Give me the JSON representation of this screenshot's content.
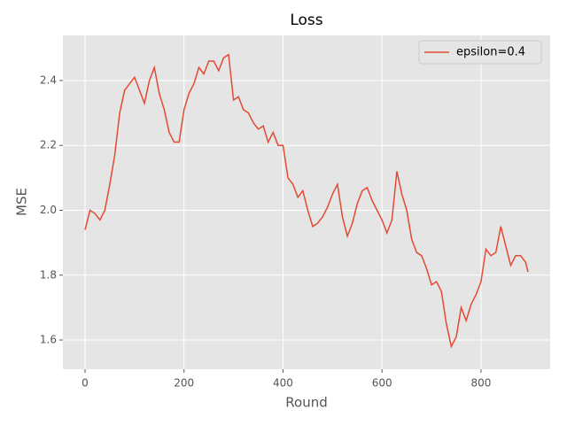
{
  "chart_data": {
    "type": "line",
    "title": "Loss",
    "x_label": "Round",
    "y_label": "MSE",
    "x": [
      0,
      10,
      20,
      30,
      40,
      50,
      60,
      70,
      80,
      90,
      100,
      110,
      120,
      130,
      140,
      150,
      160,
      170,
      180,
      190,
      200,
      210,
      220,
      230,
      240,
      250,
      260,
      270,
      280,
      290,
      300,
      310,
      320,
      330,
      340,
      350,
      360,
      370,
      380,
      390,
      400,
      410,
      420,
      430,
      440,
      450,
      460,
      470,
      480,
      490,
      500,
      510,
      520,
      530,
      540,
      550,
      560,
      570,
      580,
      590,
      600,
      610,
      620,
      630,
      640,
      650,
      660,
      670,
      680,
      690,
      700,
      710,
      720,
      730,
      740,
      750,
      760,
      770,
      780,
      790,
      800,
      810,
      820,
      830,
      840,
      850,
      860,
      870,
      880,
      890,
      895
    ],
    "series": [
      {
        "name": "epsilon=0.4",
        "color": "#E24A33",
        "values": [
          1.94,
          2.0,
          1.99,
          1.97,
          2.0,
          2.08,
          2.17,
          2.3,
          2.37,
          2.39,
          2.41,
          2.37,
          2.33,
          2.4,
          2.44,
          2.36,
          2.31,
          2.24,
          2.21,
          2.21,
          2.31,
          2.36,
          2.39,
          2.44,
          2.42,
          2.46,
          2.46,
          2.43,
          2.47,
          2.48,
          2.34,
          2.35,
          2.31,
          2.3,
          2.27,
          2.25,
          2.26,
          2.21,
          2.24,
          2.2,
          2.2,
          2.1,
          2.08,
          2.04,
          2.06,
          2.0,
          1.95,
          1.96,
          1.98,
          2.01,
          2.05,
          2.08,
          1.98,
          1.92,
          1.96,
          2.02,
          2.06,
          2.07,
          2.03,
          2.0,
          1.97,
          1.93,
          1.97,
          2.12,
          2.05,
          2.0,
          1.91,
          1.87,
          1.86,
          1.82,
          1.77,
          1.78,
          1.75,
          1.65,
          1.58,
          1.61,
          1.7,
          1.66,
          1.71,
          1.74,
          1.78,
          1.88,
          1.86,
          1.87,
          1.95,
          1.89,
          1.83,
          1.86,
          1.86,
          1.84,
          1.81
        ]
      }
    ],
    "xlim": [
      -44.75,
      939.75
    ],
    "ylim": [
      1.51,
      2.539
    ],
    "xticks": [
      0,
      200,
      400,
      600,
      800
    ],
    "yticks": [
      1.6,
      1.8,
      {
        "value": 2,
        "label": "2.0"
      },
      2.2,
      2.4
    ],
    "grid": true,
    "legend": "upper right"
  }
}
